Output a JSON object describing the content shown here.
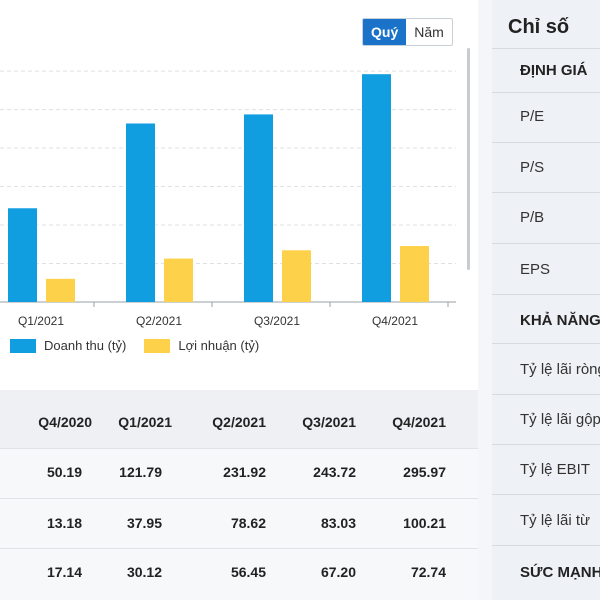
{
  "toggle": {
    "options": [
      "Quý",
      "Năm"
    ],
    "active": 0
  },
  "chart_data": {
    "type": "bar",
    "categories": [
      "Q1/2021",
      "Q2/2021",
      "Q3/2021",
      "Q4/2021"
    ],
    "series": [
      {
        "name": "Doanh thu (tỷ)",
        "color": "#119ee0",
        "values": [
          121.79,
          231.92,
          243.72,
          295.97
        ]
      },
      {
        "name": "Lợi nhuận (tỷ)",
        "color": "#fdd24a",
        "values": [
          30.12,
          56.45,
          67.2,
          72.74
        ]
      }
    ],
    "ylim": [
      0,
      330
    ],
    "grid": true,
    "legend": "bottom-left"
  },
  "table": {
    "headers": [
      "Q4/2020",
      "Q1/2021",
      "Q2/2021",
      "Q3/2021",
      "Q4/2021"
    ],
    "rows": [
      [
        "50.19",
        "121.79",
        "231.92",
        "243.72",
        "295.97"
      ],
      [
        "13.18",
        "37.95",
        "78.62",
        "83.03",
        "100.21"
      ],
      [
        "17.14",
        "30.12",
        "56.45",
        "67.20",
        "72.74"
      ]
    ]
  },
  "right_panel": {
    "title": "Chỉ số",
    "sections": [
      {
        "label": "ĐỊNH GIÁ",
        "metrics": [
          "P/E",
          "P/S",
          "P/B",
          "EPS"
        ]
      },
      {
        "label": "KHẢ NĂNG",
        "metrics": [
          "Tỷ lệ lãi ròng",
          "Tỷ lệ lãi gộp",
          "Tỷ lệ EBIT",
          "Tỷ lệ lãi từ"
        ]
      },
      {
        "label": "SỨC MẠNH",
        "metrics": []
      }
    ]
  }
}
